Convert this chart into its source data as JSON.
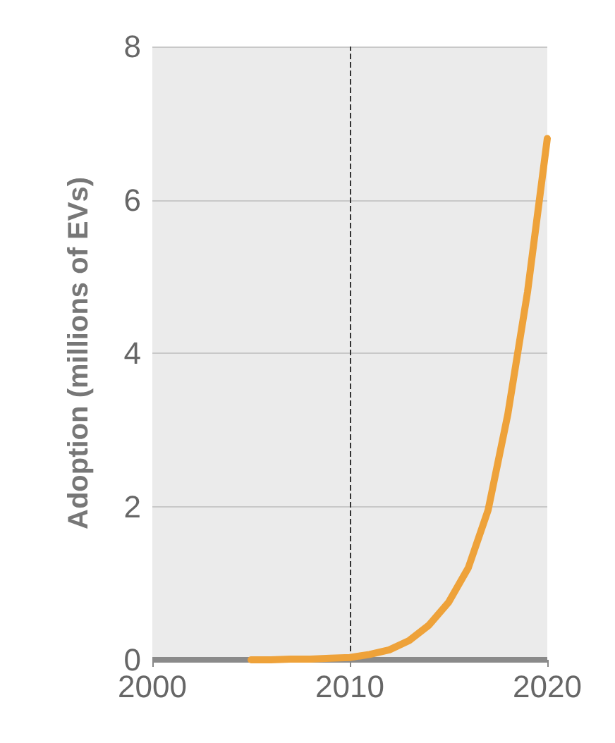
{
  "chart_data": {
    "type": "line",
    "ylabel": "Adoption (millions of EVs)",
    "x": [
      2005,
      2006,
      2007,
      2008,
      2009,
      2010,
      2011,
      2012,
      2013,
      2014,
      2015,
      2016,
      2017,
      2018,
      2019,
      2020
    ],
    "series": [
      {
        "color": "#eea23a",
        "values": [
          0,
          0,
          0.01,
          0.01,
          0.02,
          0.03,
          0.07,
          0.13,
          0.25,
          0.45,
          0.75,
          1.2,
          1.95,
          3.2,
          4.8,
          6.8
        ]
      }
    ],
    "xlim": [
      2000,
      2020
    ],
    "xticks": [
      2000,
      2010,
      2020
    ],
    "ylim": [
      0,
      8
    ],
    "yticks": [
      0,
      2,
      4,
      6,
      8
    ],
    "ref_lines": [
      {
        "axis": "x",
        "value": 2010,
        "color": "#333333",
        "line_style": "dashed"
      }
    ],
    "grid": "y",
    "marker": "none",
    "line_style": "solid"
  }
}
